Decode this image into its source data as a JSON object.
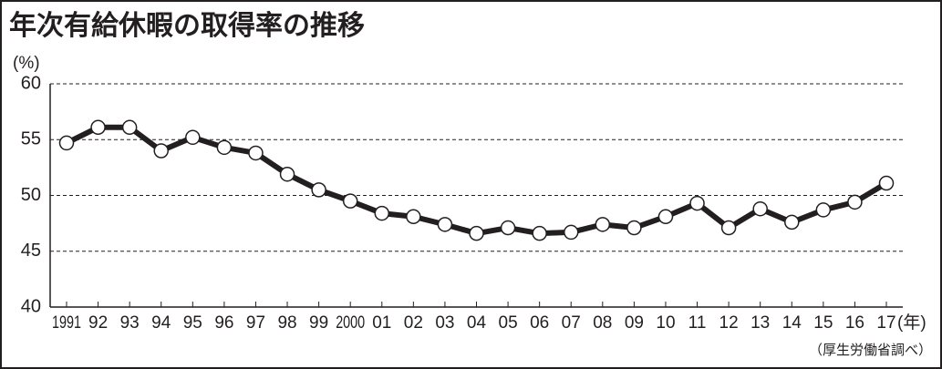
{
  "chart_data": {
    "type": "line",
    "title": "年次有給休暇の取得率の推移",
    "y_unit_label": "(%)",
    "x_unit_label": "(年)",
    "source": "（厚生労働省調べ）",
    "categories": [
      "1991",
      "92",
      "93",
      "94",
      "95",
      "96",
      "97",
      "98",
      "99",
      "2000",
      "01",
      "02",
      "03",
      "04",
      "05",
      "06",
      "07",
      "08",
      "09",
      "10",
      "11",
      "12",
      "13",
      "14",
      "15",
      "16",
      "17"
    ],
    "values": [
      54.7,
      56.1,
      56.1,
      54.0,
      55.2,
      54.3,
      53.8,
      51.9,
      50.5,
      49.5,
      48.4,
      48.1,
      47.4,
      46.6,
      47.1,
      46.6,
      46.7,
      47.4,
      47.1,
      48.1,
      49.3,
      47.1,
      48.8,
      47.6,
      48.7,
      49.4,
      51.1
    ],
    "color": "#231f20",
    "ylim": [
      40,
      60
    ],
    "yticks": [
      40,
      45,
      50,
      55,
      60
    ],
    "grid": true
  }
}
